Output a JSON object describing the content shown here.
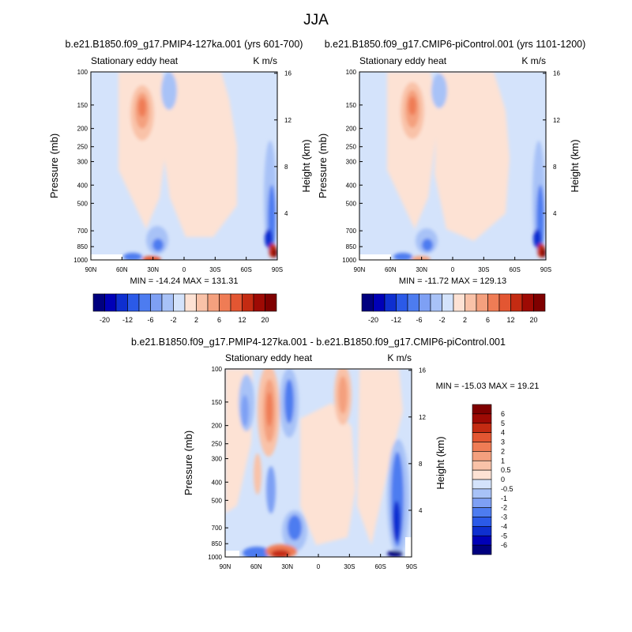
{
  "page": {
    "title": "JJA"
  },
  "chart_data": [
    {
      "type": "heatmap",
      "title": "b.e21.B1850.f09_g17.PMIP4-127ka.001 (yrs 601-700)",
      "left_label": "Stationary eddy heat",
      "right_label": "K m/s",
      "ylabel": "Pressure (mb)",
      "ylabel_right": "Height (km)",
      "x_ticks": [
        "90N",
        "60N",
        "30N",
        "0",
        "30S",
        "60S",
        "90S"
      ],
      "y_ticks": [
        "100",
        "150",
        "200",
        "250",
        "300",
        "400",
        "500",
        "700",
        "850",
        "1000"
      ],
      "y_ticks_right": [
        "16",
        "12",
        "8",
        "4"
      ],
      "ylim": [
        1000,
        100
      ],
      "xlim": [
        "90N",
        "90S"
      ],
      "min_max_text": "MIN = -14.24  MAX = 131.31",
      "min": -14.24,
      "max": 131.31,
      "colorbar": {
        "orientation": "horizontal",
        "tick_labels": [
          "-20",
          "-12",
          "-6",
          "-2",
          "2",
          "6",
          "12",
          "20"
        ],
        "colors": [
          "#00007f",
          "#0000b7",
          "#0e2fd0",
          "#2b5ae8",
          "#4d7cf0",
          "#7ea0f4",
          "#a8c2f7",
          "#d4e3fb",
          "#fde2d4",
          "#f9c2a8",
          "#f4a07e",
          "#ef7c55",
          "#e35632",
          "#c42b12",
          "#9e0a04",
          "#7f0000"
        ]
      }
    },
    {
      "type": "heatmap",
      "title": "b.e21.B1850.f09_g17.CMIP6-piControl.001 (yrs 1101-1200)",
      "left_label": "Stationary eddy heat",
      "right_label": "K m/s",
      "ylabel": "Pressure (mb)",
      "ylabel_right": "Height (km)",
      "x_ticks": [
        "90N",
        "60N",
        "30N",
        "0",
        "30S",
        "60S",
        "90S"
      ],
      "y_ticks": [
        "100",
        "150",
        "200",
        "250",
        "300",
        "400",
        "500",
        "700",
        "850",
        "1000"
      ],
      "y_ticks_right": [
        "16",
        "12",
        "8",
        "4"
      ],
      "ylim": [
        1000,
        100
      ],
      "xlim": [
        "90N",
        "90S"
      ],
      "min_max_text": "MIN = -11.72  MAX = 129.13",
      "min": -11.72,
      "max": 129.13,
      "colorbar": {
        "orientation": "horizontal",
        "tick_labels": [
          "-20",
          "-12",
          "-6",
          "-2",
          "2",
          "6",
          "12",
          "20"
        ],
        "colors": [
          "#00007f",
          "#0000b7",
          "#0e2fd0",
          "#2b5ae8",
          "#4d7cf0",
          "#7ea0f4",
          "#a8c2f7",
          "#d4e3fb",
          "#fde2d4",
          "#f9c2a8",
          "#f4a07e",
          "#ef7c55",
          "#e35632",
          "#c42b12",
          "#9e0a04",
          "#7f0000"
        ]
      }
    },
    {
      "type": "heatmap",
      "title": "b.e21.B1850.f09_g17.PMIP4-127ka.001 - b.e21.B1850.f09_g17.CMIP6-piControl.001",
      "left_label": "Stationary eddy heat",
      "right_label": "K m/s",
      "ylabel": "Pressure (mb)",
      "ylabel_right": "Height (km)",
      "x_ticks": [
        "90N",
        "60N",
        "30N",
        "0",
        "30S",
        "60S",
        "90S"
      ],
      "y_ticks": [
        "100",
        "150",
        "200",
        "250",
        "300",
        "400",
        "500",
        "700",
        "850",
        "1000"
      ],
      "y_ticks_right": [
        "16",
        "12",
        "8",
        "4"
      ],
      "ylim": [
        1000,
        100
      ],
      "xlim": [
        "90N",
        "90S"
      ],
      "min_max_text": "MIN = -15.03  MAX =  19.21",
      "min": -15.03,
      "max": 19.21,
      "colorbar": {
        "orientation": "vertical",
        "tick_labels": [
          "6",
          "5",
          "4",
          "3",
          "2",
          "1",
          "0.5",
          "0",
          "-0.5",
          "-1",
          "-2",
          "-3",
          "-4",
          "-5",
          "-6"
        ],
        "colors": [
          "#7f0000",
          "#9e0a04",
          "#c42b12",
          "#e35632",
          "#ef7c55",
          "#f4a07e",
          "#f9c2a8",
          "#fde2d4",
          "#d4e3fb",
          "#a8c2f7",
          "#7ea0f4",
          "#4d7cf0",
          "#2b5ae8",
          "#0e2fd0",
          "#0000b7",
          "#00007f"
        ]
      }
    }
  ]
}
